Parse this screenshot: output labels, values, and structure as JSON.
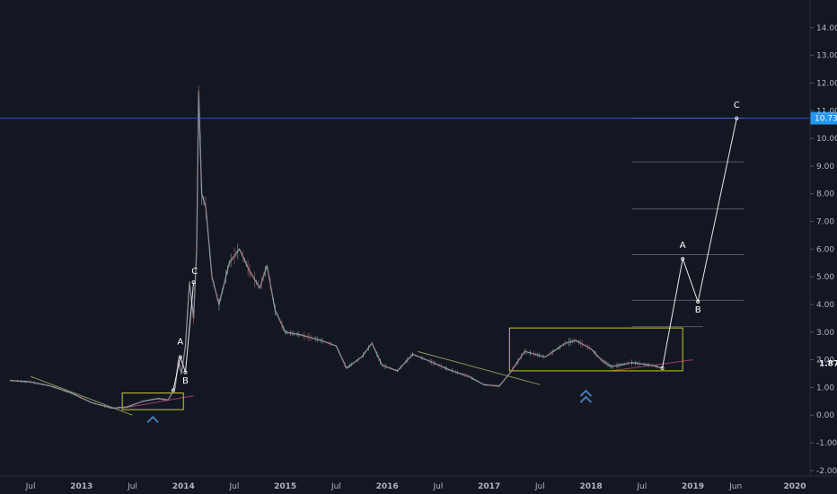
{
  "chart_data": {
    "type": "line",
    "ylim": [
      -2.2,
      15.0
    ],
    "y_ticks": [
      "-2.00",
      "-1.00",
      "0.00",
      "1.00",
      "2.00",
      "3.00",
      "4.00",
      "5.00",
      "6.00",
      "7.00",
      "8.00",
      "9.00",
      "10.00",
      "11.00",
      "12.00",
      "13.00",
      "14.00"
    ],
    "x_ticks": [
      {
        "label": "Jul",
        "t": 2012.5,
        "bold": false
      },
      {
        "label": "2013",
        "t": 2013.0,
        "bold": true
      },
      {
        "label": "Jul",
        "t": 2013.5,
        "bold": false
      },
      {
        "label": "2014",
        "t": 2014.0,
        "bold": true
      },
      {
        "label": "Jul",
        "t": 2014.5,
        "bold": false
      },
      {
        "label": "2015",
        "t": 2015.0,
        "bold": true
      },
      {
        "label": "Jul",
        "t": 2015.5,
        "bold": false
      },
      {
        "label": "2016",
        "t": 2016.0,
        "bold": true
      },
      {
        "label": "Jul",
        "t": 2016.5,
        "bold": false
      },
      {
        "label": "2017",
        "t": 2017.0,
        "bold": true
      },
      {
        "label": "Jul",
        "t": 2017.5,
        "bold": false
      },
      {
        "label": "2018",
        "t": 2018.0,
        "bold": true
      },
      {
        "label": "Jul",
        "t": 2018.5,
        "bold": false
      },
      {
        "label": "2019",
        "t": 2019.0,
        "bold": true
      },
      {
        "label": "Jun",
        "t": 2019.42,
        "bold": false
      },
      {
        "label": "2020",
        "t": 2020.0,
        "bold": true
      }
    ],
    "price_series": [
      [
        2012.3,
        1.25
      ],
      [
        2012.5,
        1.2
      ],
      [
        2012.7,
        1.05
      ],
      [
        2012.9,
        0.8
      ],
      [
        2013.1,
        0.45
      ],
      [
        2013.3,
        0.25
      ],
      [
        2013.45,
        0.3
      ],
      [
        2013.6,
        0.5
      ],
      [
        2013.75,
        0.6
      ],
      [
        2013.85,
        0.55
      ],
      [
        2013.92,
        1.0
      ],
      [
        2013.95,
        2.0
      ],
      [
        2013.98,
        1.5
      ],
      [
        2014.02,
        2.5
      ],
      [
        2014.06,
        4.8
      ],
      [
        2014.1,
        3.5
      ],
      [
        2014.13,
        6.0
      ],
      [
        2014.15,
        11.7
      ],
      [
        2014.18,
        8.0
      ],
      [
        2014.22,
        7.5
      ],
      [
        2014.28,
        5.0
      ],
      [
        2014.35,
        4.0
      ],
      [
        2014.45,
        5.5
      ],
      [
        2014.55,
        6.0
      ],
      [
        2014.65,
        5.2
      ],
      [
        2014.75,
        4.6
      ],
      [
        2014.82,
        5.4
      ],
      [
        2014.9,
        3.8
      ],
      [
        2015.0,
        3.0
      ],
      [
        2015.15,
        2.9
      ],
      [
        2015.35,
        2.7
      ],
      [
        2015.5,
        2.5
      ],
      [
        2015.6,
        1.7
      ],
      [
        2015.75,
        2.1
      ],
      [
        2015.85,
        2.6
      ],
      [
        2015.95,
        1.8
      ],
      [
        2016.1,
        1.6
      ],
      [
        2016.25,
        2.2
      ],
      [
        2016.45,
        1.9
      ],
      [
        2016.6,
        1.65
      ],
      [
        2016.8,
        1.4
      ],
      [
        2016.95,
        1.1
      ],
      [
        2017.1,
        1.05
      ],
      [
        2017.2,
        1.5
      ],
      [
        2017.35,
        2.3
      ],
      [
        2017.55,
        2.1
      ],
      [
        2017.75,
        2.6
      ],
      [
        2017.85,
        2.7
      ],
      [
        2018.0,
        2.4
      ],
      [
        2018.1,
        2.0
      ],
      [
        2018.2,
        1.75
      ],
      [
        2018.4,
        1.9
      ],
      [
        2018.6,
        1.8
      ],
      [
        2018.7,
        1.7
      ]
    ],
    "current_price": {
      "value": 10.73,
      "label": "10.73"
    },
    "last_price": {
      "value": 1.87,
      "label": "1.87"
    },
    "wave_paths": [
      [
        [
          2013.9,
          0.9
        ],
        [
          2013.97,
          2.1
        ],
        [
          2014.02,
          1.55
        ],
        [
          2014.1,
          4.8
        ]
      ],
      [
        [
          2018.7,
          1.7
        ],
        [
          2018.9,
          5.65
        ],
        [
          2019.05,
          4.1
        ],
        [
          2019.43,
          10.73
        ]
      ]
    ],
    "wave_labels": [
      {
        "text": "A",
        "t": 2013.97,
        "y": 2.55
      },
      {
        "text": "B",
        "t": 2014.02,
        "y": 1.15
      },
      {
        "text": "C",
        "t": 2014.11,
        "y": 5.1
      },
      {
        "text": "A",
        "t": 2018.9,
        "y": 6.05
      },
      {
        "text": "B",
        "t": 2019.05,
        "y": 3.7
      },
      {
        "text": "C",
        "t": 2019.43,
        "y": 11.1
      }
    ],
    "boxes": [
      {
        "t0": 2013.4,
        "t1": 2014.0,
        "y0": 0.2,
        "y1": 0.8
      },
      {
        "t0": 2017.2,
        "t1": 2018.9,
        "y0": 1.6,
        "y1": 3.15
      }
    ],
    "up_markers": [
      {
        "t": 2013.7,
        "y": -0.1,
        "double": false
      },
      {
        "t": 2017.95,
        "y": 0.85,
        "double": true
      }
    ],
    "fib_levels": [
      {
        "y": 10.73,
        "t0": 2018.4,
        "t1": 2019.5
      },
      {
        "y": 9.15,
        "t0": 2018.4,
        "t1": 2019.5
      },
      {
        "y": 7.45,
        "t0": 2018.4,
        "t1": 2019.5
      },
      {
        "y": 5.8,
        "t0": 2018.4,
        "t1": 2019.5
      },
      {
        "y": 4.15,
        "t0": 2018.4,
        "t1": 2019.5
      },
      {
        "y": 3.2,
        "t0": 2018.4,
        "t1": 2019.1
      }
    ],
    "trend_lines": [
      {
        "points": [
          [
            2012.5,
            1.4
          ],
          [
            2013.5,
            0.0
          ]
        ],
        "color": "#8a9a5b"
      },
      {
        "points": [
          [
            2016.3,
            2.3
          ],
          [
            2017.5,
            1.1
          ]
        ],
        "color": "#8a9a5b"
      },
      {
        "points": [
          [
            2013.4,
            0.25
          ],
          [
            2014.1,
            0.7
          ]
        ],
        "color": "#9c3c6c"
      },
      {
        "points": [
          [
            2018.2,
            1.6
          ],
          [
            2019.0,
            2.0
          ]
        ],
        "color": "#9c3c6c"
      }
    ],
    "colors": {
      "background": "#131722",
      "price": "#8c8f99",
      "axis_text": "#b2b5be",
      "current_line": "#2962ff",
      "current_badge": "#2196f3",
      "box": "#c9c92a",
      "wave": "#ffffff",
      "fib": "#555a66",
      "marker": "#4a78b5"
    }
  }
}
